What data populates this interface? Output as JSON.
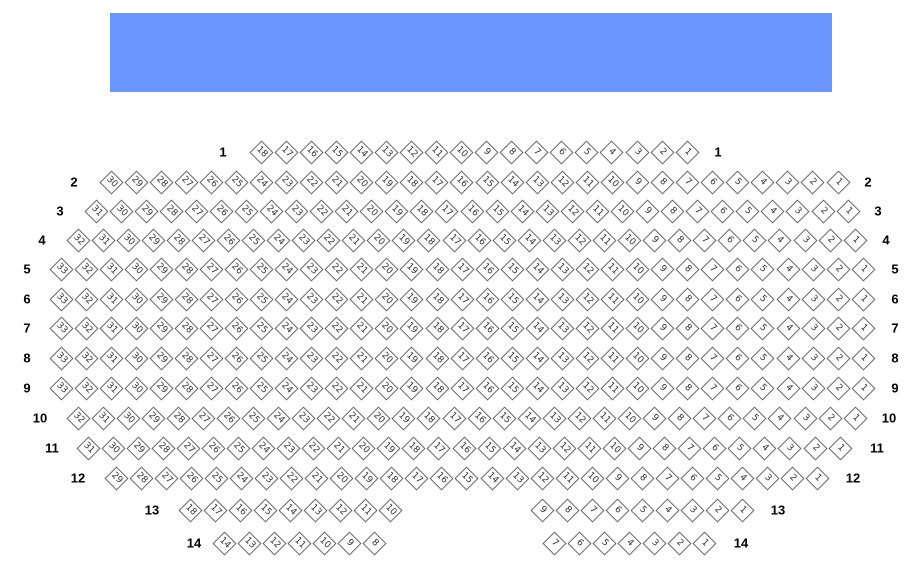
{
  "stage": {
    "color": "#6b96ff"
  },
  "rows": [
    {
      "label": "1",
      "segments": [
        {
          "from": 18,
          "to": 1
        }
      ]
    },
    {
      "label": "2",
      "segments": [
        {
          "from": 30,
          "to": 1
        }
      ]
    },
    {
      "label": "3",
      "segments": [
        {
          "from": 31,
          "to": 1
        }
      ]
    },
    {
      "label": "4",
      "segments": [
        {
          "from": 32,
          "to": 1
        }
      ]
    },
    {
      "label": "5",
      "segments": [
        {
          "from": 33,
          "to": 1
        }
      ]
    },
    {
      "label": "6",
      "segments": [
        {
          "from": 33,
          "to": 1
        }
      ]
    },
    {
      "label": "7",
      "segments": [
        {
          "from": 33,
          "to": 1
        }
      ]
    },
    {
      "label": "8",
      "segments": [
        {
          "from": 33,
          "to": 1
        }
      ]
    },
    {
      "label": "9",
      "segments": [
        {
          "from": 33,
          "to": 1
        }
      ]
    },
    {
      "label": "10",
      "segments": [
        {
          "from": 32,
          "to": 1
        }
      ]
    },
    {
      "label": "11",
      "segments": [
        {
          "from": 31,
          "to": 1
        }
      ]
    },
    {
      "label": "12",
      "segments": [
        {
          "from": 29,
          "to": 1
        }
      ]
    },
    {
      "label": "13",
      "segments": [
        {
          "from": 18,
          "to": 10
        },
        {
          "from": 9,
          "to": 1
        }
      ]
    },
    {
      "label": "14",
      "segments": [
        {
          "from": 14,
          "to": 8
        },
        {
          "from": 7,
          "to": 1
        }
      ]
    }
  ]
}
